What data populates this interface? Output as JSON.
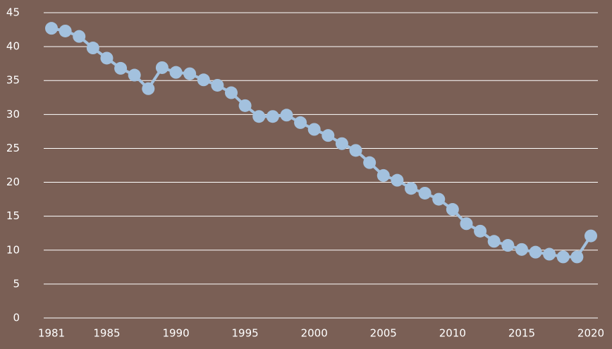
{
  "chart_data": {
    "type": "line",
    "x": [
      1981,
      1982,
      1983,
      1984,
      1985,
      1986,
      1987,
      1988,
      1989,
      1990,
      1991,
      1992,
      1993,
      1994,
      1995,
      1996,
      1997,
      1998,
      1999,
      2000,
      2001,
      2002,
      2003,
      2004,
      2005,
      2006,
      2007,
      2008,
      2009,
      2010,
      2011,
      2012,
      2013,
      2014,
      2015,
      2016,
      2017,
      2018,
      2019,
      2020
    ],
    "series": [
      {
        "color": "#a3c1de",
        "values": [
          42.7,
          42.3,
          41.5,
          39.8,
          38.3,
          36.8,
          35.8,
          33.8,
          36.9,
          36.2,
          36.0,
          35.1,
          34.3,
          33.2,
          31.3,
          29.7,
          29.7,
          29.9,
          28.8,
          27.8,
          26.9,
          25.7,
          24.7,
          22.9,
          21.0,
          20.3,
          19.1,
          18.4,
          17.5,
          16.0,
          13.9,
          12.8,
          11.3,
          10.7,
          10.1,
          9.7,
          9.4,
          9.0,
          9.0,
          12.1
        ]
      }
    ],
    "xlim": [
      1981,
      2020
    ],
    "xticks": [
      1981,
      1985,
      1990,
      1995,
      2000,
      2005,
      2010,
      2015,
      2020
    ],
    "ylim": [
      0,
      45
    ],
    "yticks": [
      0,
      5,
      10,
      15,
      20,
      25,
      30,
      35,
      40,
      45
    ],
    "grid": true
  }
}
